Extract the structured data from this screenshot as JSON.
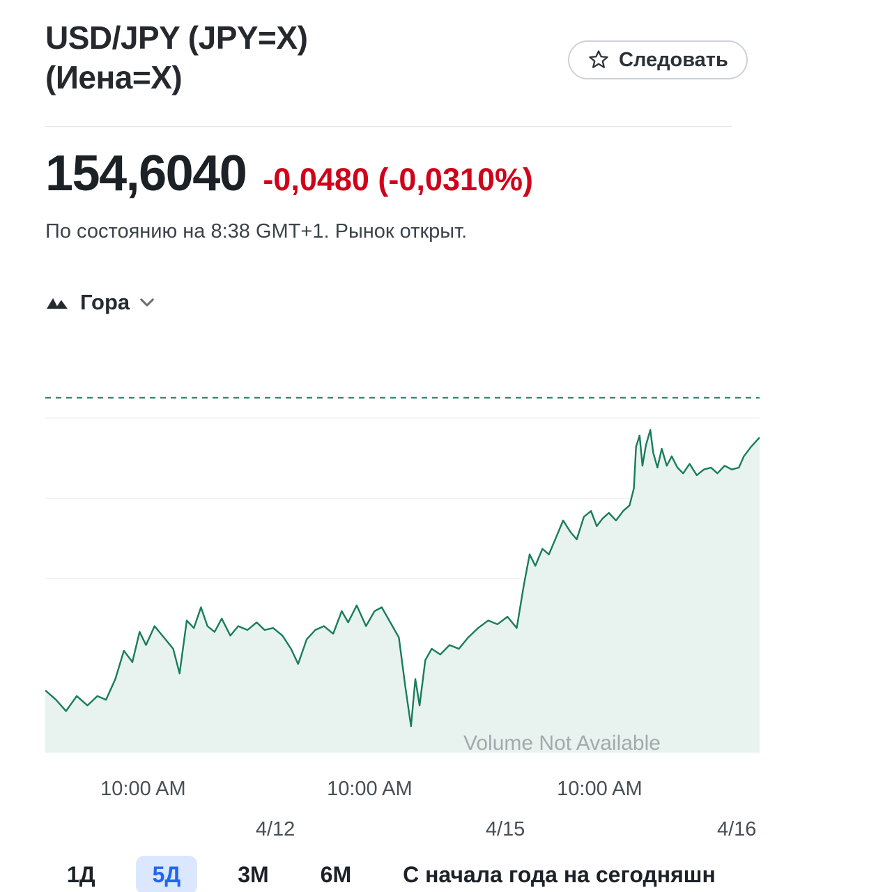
{
  "page": {
    "title_line1": "USD/JPY (JPY=X)",
    "title_line2": "(Иена=Х)"
  },
  "follow": {
    "label": "Следовать",
    "icon": "star-outline-icon"
  },
  "quote": {
    "price": "154,6040",
    "change": "-0,0480 (-0,0310%)",
    "negative_color": "#d0021b",
    "as_of": "По состоянию на 8:38 GMT+1. Рынок открыт."
  },
  "chart_controls": {
    "type_label": "Гора",
    "type_icon": "mountain-icon"
  },
  "chart_data": {
    "type": "area",
    "title": "USD/JPY 5-day intraday price",
    "ylim": [
      152.93,
      154.85
    ],
    "reference_line": 154.81,
    "grid": true,
    "legend": "none",
    "line_color": "#177d5a",
    "fill_color": "#e8f2ee",
    "reference_color": "#1d8066",
    "annotation": "Volume Not Available",
    "x_ticks": [
      {
        "label": "10:00 AM",
        "x": 0.137,
        "row": 1
      },
      {
        "label": "4/12",
        "x": 0.322,
        "row": 2
      },
      {
        "label": "10:00 AM",
        "x": 0.454,
        "row": 1
      },
      {
        "label": "4/15",
        "x": 0.644,
        "row": 2
      },
      {
        "label": "10:00 AM",
        "x": 0.776,
        "row": 1
      },
      {
        "label": "4/16",
        "x": 0.968,
        "row": 2
      }
    ],
    "points": [
      [
        0.0,
        153.26
      ],
      [
        0.015,
        153.21
      ],
      [
        0.029,
        153.15
      ],
      [
        0.044,
        153.23
      ],
      [
        0.059,
        153.18
      ],
      [
        0.073,
        153.23
      ],
      [
        0.085,
        153.21
      ],
      [
        0.098,
        153.32
      ],
      [
        0.11,
        153.47
      ],
      [
        0.122,
        153.41
      ],
      [
        0.132,
        153.57
      ],
      [
        0.141,
        153.5
      ],
      [
        0.153,
        153.6
      ],
      [
        0.166,
        153.54
      ],
      [
        0.179,
        153.48
      ],
      [
        0.188,
        153.35
      ],
      [
        0.198,
        153.63
      ],
      [
        0.208,
        153.59
      ],
      [
        0.218,
        153.7
      ],
      [
        0.227,
        153.6
      ],
      [
        0.237,
        153.57
      ],
      [
        0.247,
        153.64
      ],
      [
        0.259,
        153.55
      ],
      [
        0.27,
        153.6
      ],
      [
        0.283,
        153.58
      ],
      [
        0.296,
        153.62
      ],
      [
        0.307,
        153.58
      ],
      [
        0.319,
        153.59
      ],
      [
        0.332,
        153.55
      ],
      [
        0.344,
        153.48
      ],
      [
        0.354,
        153.4
      ],
      [
        0.366,
        153.53
      ],
      [
        0.378,
        153.58
      ],
      [
        0.39,
        153.6
      ],
      [
        0.403,
        153.56
      ],
      [
        0.415,
        153.68
      ],
      [
        0.424,
        153.62
      ],
      [
        0.436,
        153.71
      ],
      [
        0.449,
        153.6
      ],
      [
        0.461,
        153.68
      ],
      [
        0.471,
        153.7
      ],
      [
        0.483,
        153.62
      ],
      [
        0.495,
        153.54
      ],
      [
        0.504,
        153.28
      ],
      [
        0.512,
        153.07
      ],
      [
        0.518,
        153.32
      ],
      [
        0.524,
        153.18
      ],
      [
        0.532,
        153.42
      ],
      [
        0.541,
        153.48
      ],
      [
        0.553,
        153.45
      ],
      [
        0.566,
        153.5
      ],
      [
        0.579,
        153.48
      ],
      [
        0.592,
        153.54
      ],
      [
        0.606,
        153.59
      ],
      [
        0.62,
        153.63
      ],
      [
        0.633,
        153.61
      ],
      [
        0.647,
        153.65
      ],
      [
        0.66,
        153.59
      ],
      [
        0.67,
        153.82
      ],
      [
        0.678,
        153.98
      ],
      [
        0.686,
        153.92
      ],
      [
        0.696,
        154.01
      ],
      [
        0.705,
        153.98
      ],
      [
        0.715,
        154.07
      ],
      [
        0.725,
        154.16
      ],
      [
        0.735,
        154.1
      ],
      [
        0.744,
        154.06
      ],
      [
        0.754,
        154.18
      ],
      [
        0.764,
        154.21
      ],
      [
        0.772,
        154.13
      ],
      [
        0.78,
        154.17
      ],
      [
        0.789,
        154.2
      ],
      [
        0.799,
        154.16
      ],
      [
        0.809,
        154.21
      ],
      [
        0.818,
        154.24
      ],
      [
        0.824,
        154.33
      ],
      [
        0.827,
        154.55
      ],
      [
        0.832,
        154.61
      ],
      [
        0.836,
        154.45
      ],
      [
        0.841,
        154.56
      ],
      [
        0.847,
        154.64
      ],
      [
        0.851,
        154.52
      ],
      [
        0.857,
        154.44
      ],
      [
        0.863,
        154.54
      ],
      [
        0.87,
        154.45
      ],
      [
        0.877,
        154.5
      ],
      [
        0.885,
        154.44
      ],
      [
        0.893,
        154.41
      ],
      [
        0.902,
        154.46
      ],
      [
        0.912,
        154.4
      ],
      [
        0.922,
        154.43
      ],
      [
        0.932,
        154.44
      ],
      [
        0.941,
        154.41
      ],
      [
        0.951,
        154.45
      ],
      [
        0.961,
        154.43
      ],
      [
        0.971,
        154.44
      ],
      [
        0.978,
        154.5
      ],
      [
        0.988,
        154.55
      ],
      [
        1.0,
        154.6
      ]
    ]
  },
  "ranges": {
    "active_bg": "#dbe7fe",
    "active_color": "#1f66f4",
    "items": [
      {
        "label": "1Д",
        "active": false
      },
      {
        "label": "5Д",
        "active": true
      },
      {
        "label": "3М",
        "active": false
      },
      {
        "label": "6М",
        "active": false
      },
      {
        "label": "С начала года на сегодняшн",
        "active": false
      }
    ]
  }
}
